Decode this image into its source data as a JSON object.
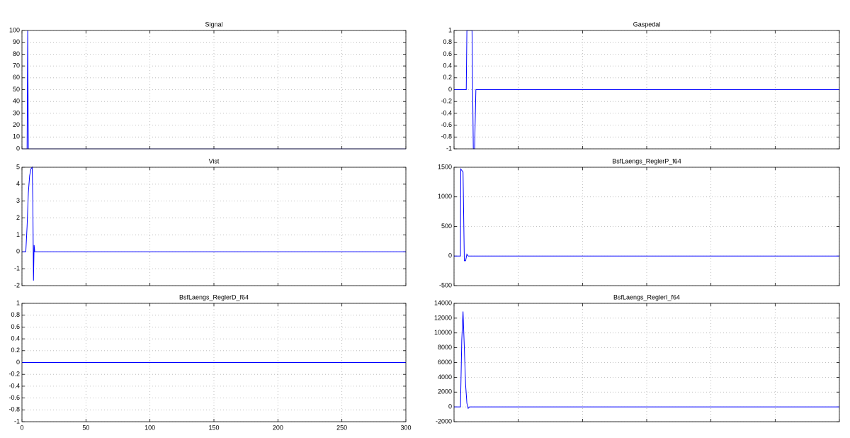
{
  "chart_data": [
    {
      "type": "line",
      "title": "Signal",
      "xlim": [
        0,
        300
      ],
      "xticks": [
        0,
        50,
        100,
        150,
        200,
        250,
        300
      ],
      "xtick_labels": false,
      "ylim": [
        0,
        100
      ],
      "yticks": [
        0,
        10,
        20,
        30,
        40,
        50,
        60,
        70,
        80,
        90,
        100
      ],
      "grid": true,
      "color": "#0000ff",
      "x": [
        0,
        4,
        4.5,
        5,
        300
      ],
      "values": [
        0,
        0,
        100,
        0,
        0
      ]
    },
    {
      "type": "line",
      "title": "Gaspedal",
      "xlim": [
        0,
        300
      ],
      "xticks": [
        0,
        50,
        100,
        150,
        200,
        250,
        300
      ],
      "xtick_labels": false,
      "ylim": [
        -1,
        1
      ],
      "yticks": [
        -1,
        -0.8,
        -0.6,
        -0.4,
        -0.2,
        0,
        0.2,
        0.4,
        0.6,
        0.8,
        1
      ],
      "grid": true,
      "color": "#0000ff",
      "x": [
        0,
        9.5,
        10,
        14,
        15,
        16,
        17,
        300
      ],
      "values": [
        0,
        0,
        1,
        1,
        -1,
        -1,
        0,
        0
      ]
    },
    {
      "type": "line",
      "title": "Vist",
      "xlim": [
        0,
        300
      ],
      "xticks": [
        0,
        50,
        100,
        150,
        200,
        250,
        300
      ],
      "xtick_labels": false,
      "ylim": [
        -2,
        5
      ],
      "yticks": [
        -2,
        -1,
        0,
        1,
        2,
        3,
        4,
        5
      ],
      "grid": true,
      "color": "#0000ff",
      "x": [
        0,
        3,
        4,
        5,
        6,
        7,
        8,
        8.5,
        9,
        9.5,
        10,
        300
      ],
      "values": [
        0,
        0,
        1.5,
        3.5,
        4.5,
        4.9,
        5,
        3,
        -1.7,
        0.4,
        0,
        0
      ]
    },
    {
      "type": "line",
      "title": "BsfLaengs_ReglerP_f64",
      "xlim": [
        0,
        300
      ],
      "xticks": [
        0,
        50,
        100,
        150,
        200,
        250,
        300
      ],
      "xtick_labels": false,
      "ylim": [
        -500,
        1500
      ],
      "yticks": [
        -500,
        0,
        500,
        1000,
        1500
      ],
      "grid": true,
      "color": "#0000ff",
      "x": [
        0,
        5,
        5.2,
        7,
        8,
        9,
        10,
        11,
        300
      ],
      "values": [
        0,
        0,
        1470,
        1420,
        -80,
        -80,
        30,
        0,
        0
      ]
    },
    {
      "type": "line",
      "title": "BsfLaengs_ReglerD_f64",
      "xlim": [
        0,
        300
      ],
      "xticks": [
        0,
        50,
        100,
        150,
        200,
        250,
        300
      ],
      "xtick_labels": true,
      "ylim": [
        -1,
        1
      ],
      "yticks": [
        -1,
        -0.8,
        -0.6,
        -0.4,
        -0.2,
        0,
        0.2,
        0.4,
        0.6,
        0.8,
        1
      ],
      "grid": true,
      "color": "#0000ff",
      "x": [
        0,
        300
      ],
      "values": [
        0,
        0
      ]
    },
    {
      "type": "line",
      "title": "BsfLaengs_ReglerI_f64",
      "xlim": [
        0,
        300
      ],
      "xticks": [
        0,
        50,
        100,
        150,
        200,
        250,
        300
      ],
      "xtick_labels": false,
      "ylim": [
        -2000,
        14000
      ],
      "yticks": [
        -2000,
        0,
        2000,
        4000,
        6000,
        8000,
        10000,
        12000,
        14000
      ],
      "grid": true,
      "color": "#0000ff",
      "x": [
        0,
        5,
        6,
        7,
        8,
        9,
        10,
        11,
        12,
        300
      ],
      "values": [
        0,
        0,
        9000,
        12900,
        8000,
        3000,
        500,
        -200,
        0,
        0
      ]
    }
  ]
}
